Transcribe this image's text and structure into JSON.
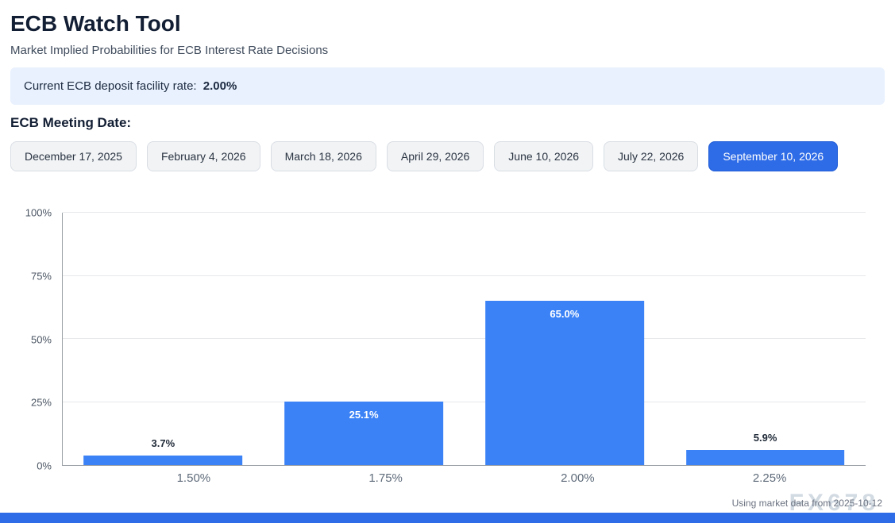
{
  "page": {
    "title": "ECB Watch Tool",
    "subtitle": "Market Implied Probabilities for ECB Interest Rate Decisions",
    "banner": {
      "label": "Current ECB deposit facility rate:",
      "value": "2.00%"
    },
    "meeting_label": "ECB Meeting Date:",
    "footer_note": "Using market data from 2025-10-12",
    "watermark": "FX678"
  },
  "meeting_dates": [
    {
      "label": "December 17, 2025",
      "selected": false
    },
    {
      "label": "February 4, 2026",
      "selected": false
    },
    {
      "label": "March 18, 2026",
      "selected": false
    },
    {
      "label": "April 29, 2026",
      "selected": false
    },
    {
      "label": "June 10, 2026",
      "selected": false
    },
    {
      "label": "July 22, 2026",
      "selected": false
    },
    {
      "label": "September 10, 2026",
      "selected": true
    }
  ],
  "colors": {
    "accent": "#2563eb",
    "bar": "#3b82f6",
    "banner_bg": "#e8f1fd",
    "selected_button_bg": "#2e6be6",
    "footer_strip": "#2e6be6"
  },
  "chart_data": {
    "type": "bar",
    "title": "",
    "categories": [
      "1.50%",
      "1.75%",
      "2.00%",
      "2.25%"
    ],
    "values": [
      3.7,
      25.1,
      65.0,
      5.9
    ],
    "bar_labels": [
      "3.7%",
      "25.1%",
      "65.0%",
      "5.9%"
    ],
    "xlabel": "",
    "ylabel": "",
    "ylim": [
      0,
      100
    ],
    "yticks": [
      0,
      25,
      50,
      75,
      100
    ],
    "ytick_labels": [
      "0%",
      "25%",
      "50%",
      "75%",
      "100%"
    ],
    "grid": true,
    "legend": false,
    "inside_label_threshold": 15
  }
}
